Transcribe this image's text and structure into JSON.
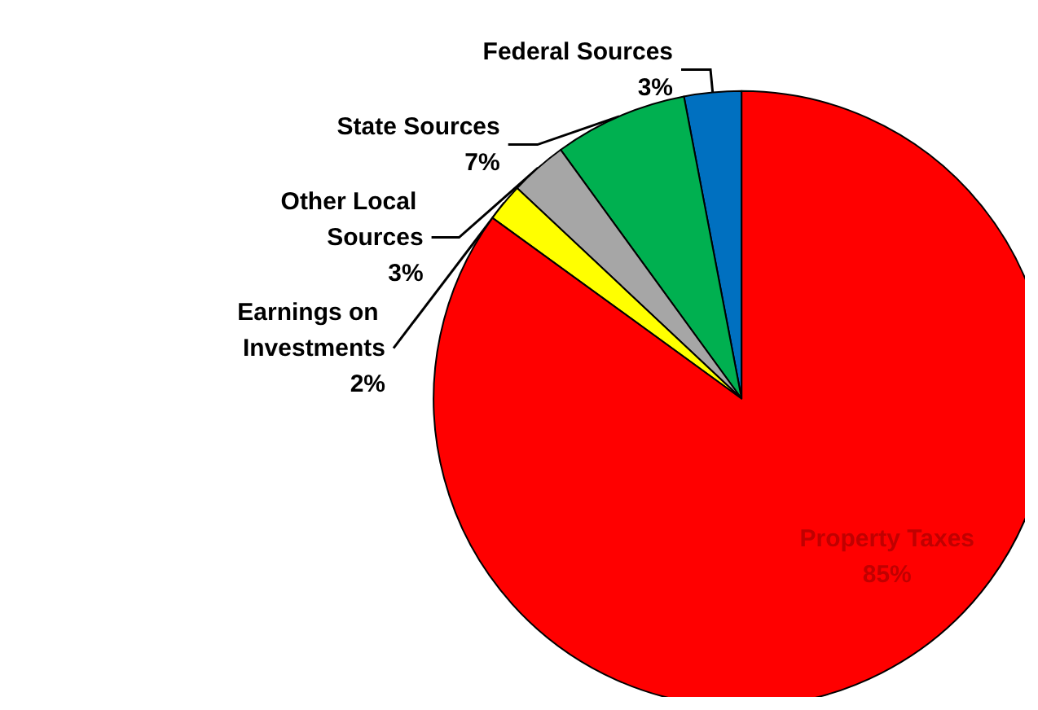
{
  "chart_data": {
    "type": "pie",
    "categories": [
      "Federal Sources",
      "State Sources",
      "Other Local Sources",
      "Earnings on Investments",
      "Property Taxes"
    ],
    "values": [
      3,
      7,
      3,
      2,
      85
    ],
    "colors": [
      "#0070c0",
      "#00b050",
      "#a6a6a6",
      "#ffff00",
      "#ff0000"
    ],
    "value_labels": [
      "3%",
      "7%",
      "3%",
      "2%",
      "85%"
    ],
    "legend": false
  }
}
